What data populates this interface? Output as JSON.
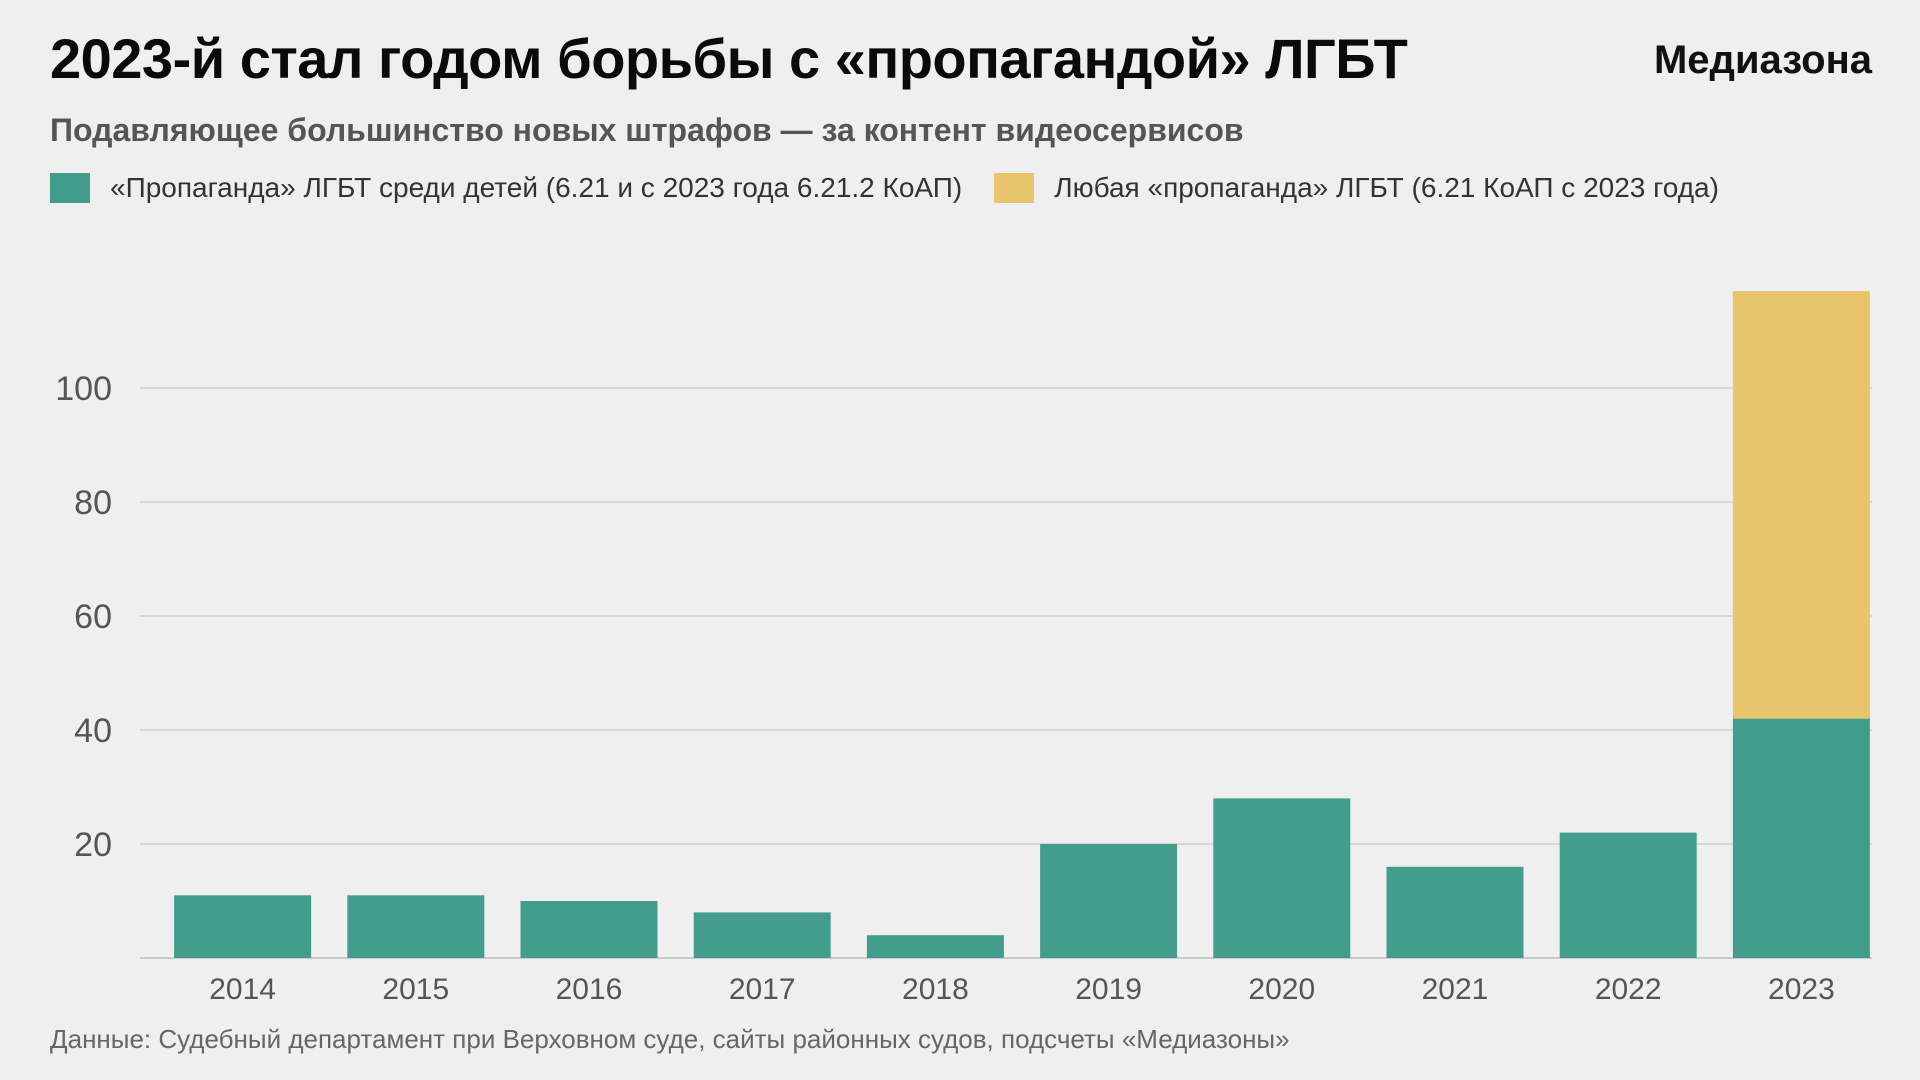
{
  "header": {
    "title": "2023-й стал годом борьбы с «пропагандой» ЛГБТ",
    "logo": "Медиазона",
    "subtitle": "Подавляющее большинство новых штрафов — за контент видеосервисов"
  },
  "legend": [
    {
      "label": "«Пропаганда» ЛГБТ среди детей (6.21 и с 2023 года 6.21.2 КоАП)",
      "color": "#429d8c"
    },
    {
      "label": "Любая «пропаганда» ЛГБТ (6.21 КоАП с 2023 года)",
      "color": "#e8c46a"
    }
  ],
  "footer": {
    "source": "Данные: Судебный департамент при Верховном суде, сайты районных судов, подсчеты «Медиазоны»"
  },
  "chart_data": {
    "type": "bar",
    "stacked": true,
    "categories": [
      "2014",
      "2015",
      "2016",
      "2017",
      "2018",
      "2019",
      "2020",
      "2021",
      "2022",
      "2023"
    ],
    "series": [
      {
        "name": "«Пропаганда» ЛГБТ среди детей (6.21 и с 2023 года 6.21.2 КоАП)",
        "color": "#429d8c",
        "values": [
          11,
          11,
          10,
          8,
          4,
          20,
          28,
          16,
          22,
          42
        ]
      },
      {
        "name": "Любая «пропаганда» ЛГБТ (6.21 КоАП с 2023 года)",
        "color": "#e8c46a",
        "values": [
          0,
          0,
          0,
          0,
          0,
          0,
          0,
          0,
          0,
          75
        ]
      }
    ],
    "yticks": [
      20,
      40,
      60,
      80,
      100
    ],
    "ylim": [
      0,
      120
    ],
    "grid": true,
    "legend_position": "top-left"
  }
}
